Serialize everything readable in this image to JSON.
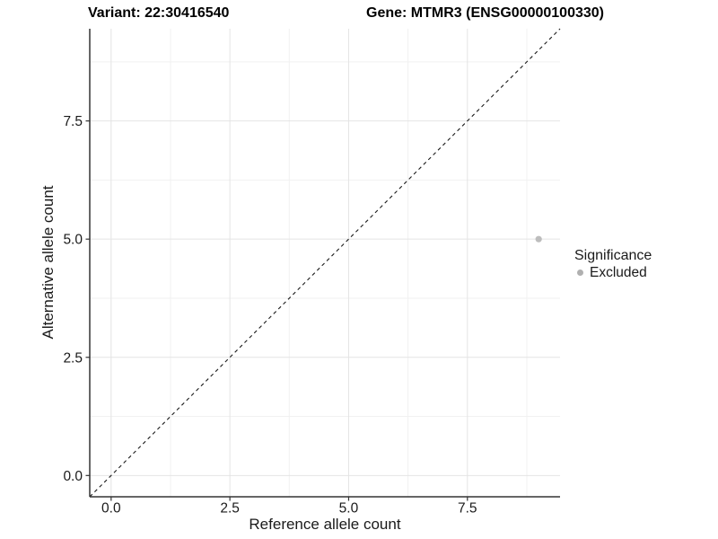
{
  "chart_data": {
    "type": "scatter",
    "title_left": "Variant: 22:30416540",
    "title_right": "Gene: MTMR3 (ENSG00000100330)",
    "xlabel": "Reference allele count",
    "ylabel": "Alternative allele count",
    "xlim": [
      -0.45,
      9.45
    ],
    "ylim": [
      -0.45,
      9.45
    ],
    "x_ticks": [
      0.0,
      2.5,
      5.0,
      7.5
    ],
    "y_ticks": [
      0.0,
      2.5,
      5.0,
      7.5
    ],
    "x_tick_labels": [
      "0.0",
      "2.5",
      "5.0",
      "7.5"
    ],
    "y_tick_labels": [
      "0.0",
      "2.5",
      "5.0",
      "7.5"
    ],
    "x_minor_ticks": [
      1.25,
      3.75,
      6.25,
      8.75
    ],
    "y_minor_ticks": [
      1.25,
      3.75,
      6.25,
      8.75
    ],
    "grid": "major+minor",
    "legend_position": "right",
    "reference_line": {
      "kind": "abline",
      "slope": 1,
      "intercept": 0,
      "style": "dashed",
      "color": "#1a1a1a"
    },
    "series": [
      {
        "name": "Excluded",
        "marker": "circle",
        "color": "#bdbdbd",
        "points": [
          {
            "x": 9,
            "y": 5
          }
        ]
      }
    ],
    "legend": {
      "title": "Significance",
      "entries": [
        {
          "label": "Excluded",
          "marker": "circle",
          "color": "#b0b0b0"
        }
      ]
    },
    "colors": {
      "background": "#ffffff",
      "grid_major": "#e4e4e4",
      "grid_minor": "#f1f1f1",
      "axis_line": "#333333",
      "tick_text": "#1a1a1a",
      "title_text": "#000000"
    }
  }
}
